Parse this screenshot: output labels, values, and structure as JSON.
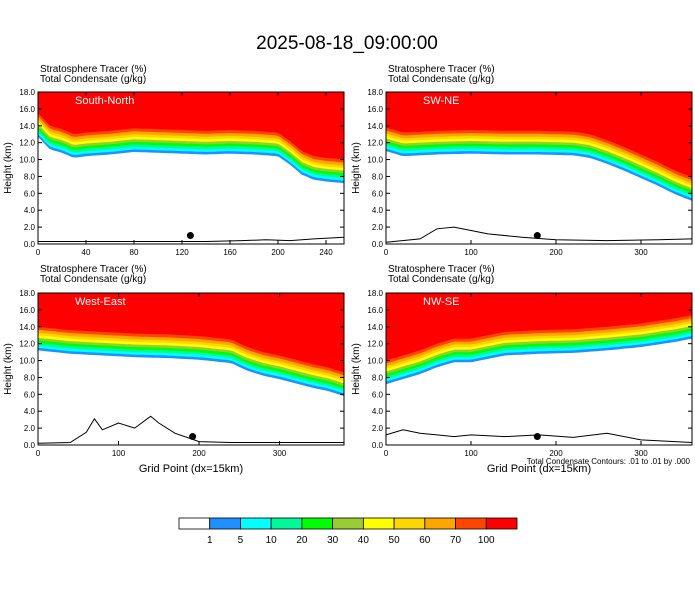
{
  "title": "2025-08-18_09:00:00",
  "panel_header": {
    "line1": "Stratosphere Tracer   (%)",
    "line2": "Total Condensate   (g/kg)"
  },
  "xlabel": "Grid Point (dx=15km)",
  "ylabel": "Height (km)",
  "contour_note": "Total Condensate Contours: .01 to .01 by .000",
  "colors": {
    "ink": "#000000",
    "background": "#ffffff",
    "panel_label_text": "#ffffff"
  },
  "colorbar": {
    "colors": [
      "#ffffff",
      "#1e90ff",
      "#00ffff",
      "#00fa9a",
      "#00ff00",
      "#9acd32",
      "#ffff00",
      "#ffd700",
      "#ffa500",
      "#ff4500",
      "#ff0000"
    ],
    "labels": [
      "1",
      "5",
      "10",
      "20",
      "30",
      "40",
      "50",
      "60",
      "70",
      "100"
    ]
  },
  "chart_data": [
    {
      "type": "heatmap",
      "panel_label": "South-North",
      "xlim": [
        0,
        255
      ],
      "xticks": [
        0,
        40,
        80,
        120,
        160,
        200,
        240
      ],
      "ylim": [
        0,
        18
      ],
      "yticks": [
        "0.0",
        "2.0",
        "4.0",
        "6.0",
        "8.0",
        "10.0",
        "12.0",
        "14.0",
        "16.0",
        "18.0"
      ],
      "stratosphere_tracer_base_km": {
        "x": [
          0,
          10,
          20,
          30,
          40,
          60,
          80,
          100,
          120,
          140,
          160,
          180,
          200,
          210,
          220,
          230,
          240,
          255
        ],
        "y": [
          15.5,
          14.0,
          13.6,
          13.0,
          13.2,
          13.4,
          13.7,
          13.6,
          13.5,
          13.4,
          13.5,
          13.4,
          13.2,
          12.2,
          11.0,
          10.4,
          10.2,
          10.0
        ]
      },
      "terrain_km": {
        "x": [
          0,
          60,
          100,
          140,
          170,
          190,
          210,
          230,
          255
        ],
        "y": [
          0.3,
          0.3,
          0.3,
          0.3,
          0.4,
          0.5,
          0.4,
          0.6,
          0.8
        ]
      },
      "marker": {
        "x": 127,
        "y": 1.0
      }
    },
    {
      "type": "heatmap",
      "panel_label": "SW-NE",
      "xlim": [
        0,
        360
      ],
      "xticks": [
        0,
        100,
        200,
        300
      ],
      "ylim": [
        0,
        18
      ],
      "yticks": [
        "0.0",
        "2.0",
        "4.0",
        "6.0",
        "8.0",
        "10.0",
        "12.0",
        "14.0",
        "16.0",
        "18.0"
      ],
      "stratosphere_tracer_base_km": {
        "x": [
          0,
          20,
          60,
          100,
          140,
          180,
          220,
          240,
          260,
          280,
          300,
          320,
          340,
          360
        ],
        "y": [
          13.8,
          13.2,
          13.4,
          13.5,
          13.4,
          13.4,
          13.3,
          13.0,
          12.3,
          11.5,
          10.6,
          9.7,
          8.7,
          7.9
        ]
      },
      "terrain_km": {
        "x": [
          0,
          40,
          60,
          80,
          100,
          120,
          160,
          200,
          260,
          320,
          360
        ],
        "y": [
          0.2,
          0.6,
          1.8,
          2.0,
          1.6,
          1.2,
          0.8,
          0.5,
          0.4,
          0.5,
          0.6
        ]
      },
      "marker": {
        "x": 178,
        "y": 1.0
      }
    },
    {
      "type": "heatmap",
      "panel_label": "West-East",
      "xlim": [
        0,
        380
      ],
      "xticks": [
        0,
        100,
        200,
        300
      ],
      "ylim": [
        0,
        18
      ],
      "yticks": [
        "0.0",
        "2.0",
        "4.0",
        "6.0",
        "8.0",
        "10.0",
        "12.0",
        "14.0",
        "16.0",
        "18.0"
      ],
      "stratosphere_tracer_base_km": {
        "x": [
          0,
          40,
          80,
          120,
          160,
          200,
          240,
          260,
          280,
          300,
          320,
          340,
          360,
          380
        ],
        "y": [
          14.0,
          13.6,
          13.4,
          13.2,
          13.1,
          12.9,
          12.5,
          11.6,
          11.0,
          10.6,
          10.1,
          9.6,
          9.2,
          8.6
        ]
      },
      "terrain_km": {
        "x": [
          0,
          40,
          60,
          70,
          80,
          100,
          120,
          140,
          150,
          170,
          200,
          240,
          280,
          320,
          380
        ],
        "y": [
          0.2,
          0.3,
          1.5,
          3.1,
          1.8,
          2.6,
          2.0,
          3.4,
          2.6,
          1.4,
          0.4,
          0.3,
          0.3,
          0.3,
          0.3
        ]
      },
      "marker": {
        "x": 192,
        "y": 1.0
      }
    },
    {
      "type": "heatmap",
      "panel_label": "NW-SE",
      "xlim": [
        0,
        360
      ],
      "xticks": [
        0,
        100,
        200,
        300
      ],
      "ylim": [
        0,
        18
      ],
      "yticks": [
        "0.0",
        "2.0",
        "4.0",
        "6.0",
        "8.0",
        "10.0",
        "12.0",
        "14.0",
        "16.0",
        "18.0"
      ],
      "stratosphere_tracer_base_km": {
        "x": [
          0,
          20,
          40,
          60,
          80,
          100,
          120,
          140,
          180,
          220,
          260,
          300,
          340,
          360
        ],
        "y": [
          10.0,
          10.6,
          11.2,
          12.0,
          12.6,
          12.6,
          13.0,
          13.4,
          13.6,
          13.7,
          14.0,
          14.4,
          15.0,
          15.4
        ]
      },
      "terrain_km": {
        "x": [
          0,
          20,
          40,
          60,
          80,
          100,
          140,
          180,
          220,
          260,
          300,
          340,
          360
        ],
        "y": [
          1.2,
          1.8,
          1.4,
          1.2,
          1.0,
          1.2,
          1.0,
          1.2,
          0.9,
          1.4,
          0.6,
          0.4,
          0.3
        ]
      },
      "marker": {
        "x": 178,
        "y": 1.0
      }
    }
  ]
}
